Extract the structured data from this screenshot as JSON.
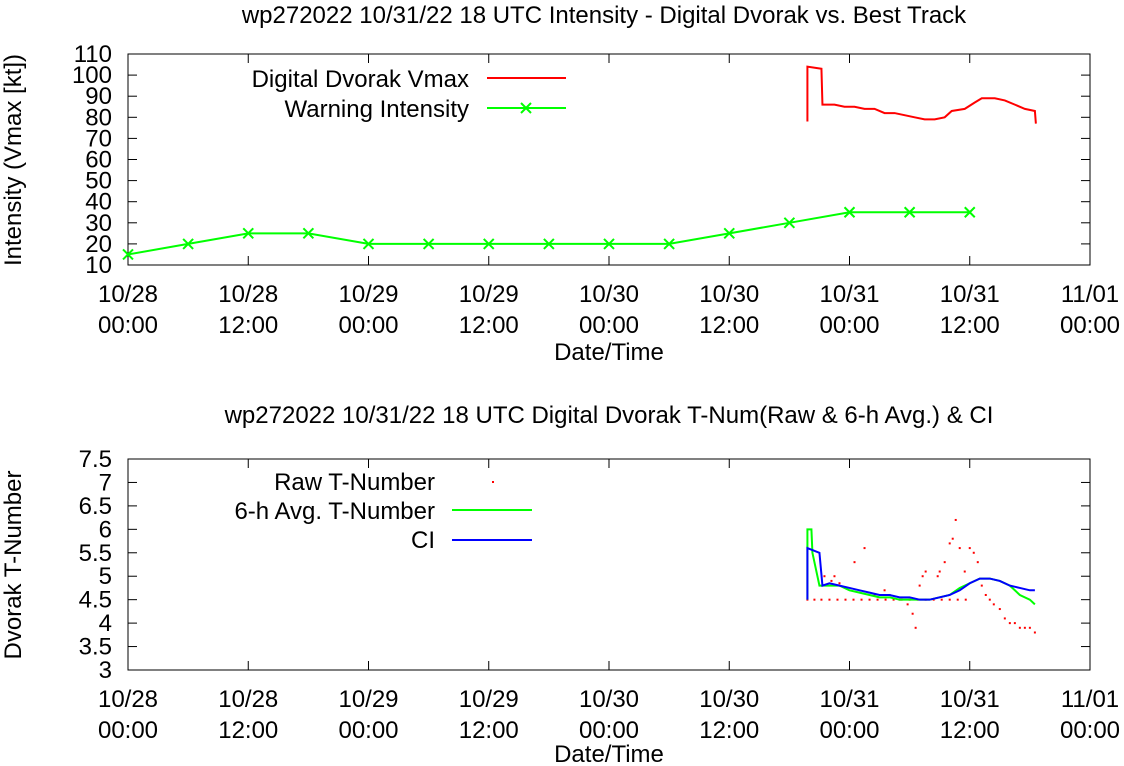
{
  "colors": {
    "vmax": "#ff0000",
    "warning": "#00ff00",
    "raw": "#ff0000",
    "avg": "#00ff00",
    "ci": "#0000ff"
  },
  "chart_data": [
    {
      "type": "line",
      "title": "wp272022 10/31/22  18 UTC Intensity - Digital Dvorak vs. Best Track",
      "xlabel": "Date/Time",
      "ylabel": "Intensity (Vmax [kt])",
      "ylim": [
        10,
        110
      ],
      "yticks": [
        10,
        20,
        30,
        40,
        50,
        60,
        70,
        80,
        90,
        100,
        110
      ],
      "xlim_hours": [
        0,
        96
      ],
      "xticks": [
        {
          "h": 0,
          "l1": "10/28",
          "l2": "00:00"
        },
        {
          "h": 12,
          "l1": "10/28",
          "l2": "12:00"
        },
        {
          "h": 24,
          "l1": "10/29",
          "l2": "00:00"
        },
        {
          "h": 36,
          "l1": "10/29",
          "l2": "12:00"
        },
        {
          "h": 48,
          "l1": "10/30",
          "l2": "00:00"
        },
        {
          "h": 60,
          "l1": "10/30",
          "l2": "12:00"
        },
        {
          "h": 72,
          "l1": "10/31",
          "l2": "00:00"
        },
        {
          "h": 84,
          "l1": "10/31",
          "l2": "12:00"
        },
        {
          "h": 96,
          "l1": "11/01",
          "l2": "00:00"
        }
      ],
      "legend": "top-left",
      "series": [
        {
          "name": "Digital Dvorak Vmax",
          "points": [
            [
              67.8,
              78
            ],
            [
              67.8,
              104
            ],
            [
              69.2,
              103
            ],
            [
              69.3,
              86
            ],
            [
              70.5,
              86
            ],
            [
              71.5,
              85
            ],
            [
              72.5,
              85
            ],
            [
              73.5,
              84
            ],
            [
              74.5,
              84
            ],
            [
              75.5,
              82
            ],
            [
              76.5,
              82
            ],
            [
              77.5,
              81
            ],
            [
              78.5,
              80
            ],
            [
              79.5,
              79
            ],
            [
              80.5,
              79
            ],
            [
              81.5,
              80
            ],
            [
              82.2,
              83
            ],
            [
              83.5,
              84
            ],
            [
              84.5,
              87
            ],
            [
              85.2,
              89
            ],
            [
              86.5,
              89
            ],
            [
              87.5,
              88
            ],
            [
              88.5,
              86
            ],
            [
              89.5,
              84
            ],
            [
              90.5,
              83
            ],
            [
              90.6,
              77
            ]
          ]
        },
        {
          "name": "Warning Intensity",
          "points": [
            [
              0,
              15
            ],
            [
              6,
              20
            ],
            [
              12,
              25
            ],
            [
              18,
              25
            ],
            [
              24,
              20
            ],
            [
              30,
              20
            ],
            [
              36,
              20
            ],
            [
              42,
              20
            ],
            [
              48,
              20
            ],
            [
              54,
              20
            ],
            [
              60,
              25
            ],
            [
              66,
              30
            ],
            [
              72,
              35
            ],
            [
              78,
              35
            ],
            [
              84,
              35
            ]
          ]
        }
      ]
    },
    {
      "type": "line",
      "title": "wp272022 10/31/22  18 UTC Digital Dvorak T-Num(Raw & 6-h Avg.) & CI",
      "xlabel": "Date/Time",
      "ylabel": "Dvorak T-Number",
      "ylim": [
        3,
        7.5
      ],
      "yticks": [
        3,
        3.5,
        4,
        4.5,
        5,
        5.5,
        6,
        6.5,
        7,
        7.5
      ],
      "xlim_hours": [
        0,
        96
      ],
      "legend": "top-left",
      "series": [
        {
          "name": "Raw T-Number",
          "points": [
            [
              67.8,
              4.5
            ],
            [
              68.5,
              4.5
            ],
            [
              69.2,
              4.5
            ],
            [
              70,
              4.5
            ],
            [
              70.8,
              4.5
            ],
            [
              71.6,
              4.5
            ],
            [
              72.4,
              4.5
            ],
            [
              73.2,
              4.5
            ],
            [
              74,
              4.5
            ],
            [
              74.8,
              4.5
            ],
            [
              75.6,
              4.5
            ],
            [
              76.4,
              4.5
            ],
            [
              77.2,
              4.5
            ],
            [
              78,
              4.5
            ],
            [
              78.8,
              4.5
            ],
            [
              79.6,
              4.5
            ],
            [
              80.4,
              4.5
            ],
            [
              81.2,
              4.5
            ],
            [
              82,
              4.5
            ],
            [
              82.8,
              4.5
            ],
            [
              83.6,
              4.5
            ],
            [
              69.5,
              5.0
            ],
            [
              70.5,
              5.0
            ],
            [
              72.5,
              5.3
            ],
            [
              73.5,
              5.6
            ],
            [
              75.5,
              4.7
            ],
            [
              76,
              4.6
            ],
            [
              77,
              4.5
            ],
            [
              77.8,
              4.4
            ],
            [
              78.3,
              4.2
            ],
            [
              78.6,
              3.9
            ],
            [
              79,
              4.8
            ],
            [
              79.3,
              5.0
            ],
            [
              79.6,
              5.1
            ],
            [
              81.5,
              5.3
            ],
            [
              82,
              5.7
            ],
            [
              82.3,
              5.8
            ],
            [
              82.6,
              6.2
            ],
            [
              83,
              5.6
            ],
            [
              83.5,
              5.1
            ],
            [
              84,
              5.6
            ],
            [
              84.4,
              5.5
            ],
            [
              84.8,
              5.3
            ],
            [
              85.2,
              4.8
            ],
            [
              85.6,
              4.6
            ],
            [
              86,
              4.5
            ],
            [
              86.4,
              4.4
            ],
            [
              87,
              4.3
            ],
            [
              87.5,
              4.1
            ],
            [
              88,
              4.0
            ],
            [
              88.5,
              4.0
            ],
            [
              89,
              3.9
            ],
            [
              89.5,
              3.9
            ],
            [
              90,
              3.9
            ],
            [
              90.5,
              3.8
            ],
            [
              70.2,
              4.9
            ],
            [
              71,
              4.85
            ],
            [
              74.5,
              4.6
            ],
            [
              80.8,
              5.0
            ],
            [
              81,
              5.1
            ]
          ]
        },
        {
          "name": "6-h Avg. T-Number",
          "points": [
            [
              67.8,
              4.5
            ],
            [
              67.8,
              6.0
            ],
            [
              68.2,
              6.0
            ],
            [
              68.3,
              5.5
            ],
            [
              69,
              4.8
            ],
            [
              70,
              4.8
            ],
            [
              71,
              4.8
            ],
            [
              72,
              4.7
            ],
            [
              73,
              4.65
            ],
            [
              74,
              4.6
            ],
            [
              75,
              4.55
            ],
            [
              76,
              4.55
            ],
            [
              77,
              4.5
            ],
            [
              78,
              4.5
            ],
            [
              79,
              4.5
            ],
            [
              80,
              4.5
            ],
            [
              81,
              4.55
            ],
            [
              82,
              4.6
            ],
            [
              83,
              4.75
            ],
            [
              84,
              4.85
            ],
            [
              85,
              4.95
            ],
            [
              86,
              4.95
            ],
            [
              87,
              4.9
            ],
            [
              88,
              4.8
            ],
            [
              89,
              4.6
            ],
            [
              90,
              4.5
            ],
            [
              90.5,
              4.4
            ]
          ]
        },
        {
          "name": "CI",
          "points": [
            [
              67.8,
              4.5
            ],
            [
              67.8,
              5.6
            ],
            [
              69,
              5.5
            ],
            [
              69.3,
              4.8
            ],
            [
              70,
              4.85
            ],
            [
              71,
              4.8
            ],
            [
              72,
              4.75
            ],
            [
              73,
              4.7
            ],
            [
              74,
              4.65
            ],
            [
              75,
              4.6
            ],
            [
              76,
              4.6
            ],
            [
              77,
              4.55
            ],
            [
              78,
              4.55
            ],
            [
              79,
              4.5
            ],
            [
              80,
              4.5
            ],
            [
              81,
              4.55
            ],
            [
              82,
              4.6
            ],
            [
              83,
              4.7
            ],
            [
              84,
              4.85
            ],
            [
              85,
              4.95
            ],
            [
              86,
              4.95
            ],
            [
              87,
              4.9
            ],
            [
              88,
              4.8
            ],
            [
              89,
              4.75
            ],
            [
              90,
              4.7
            ],
            [
              90.5,
              4.7
            ]
          ]
        }
      ]
    }
  ]
}
